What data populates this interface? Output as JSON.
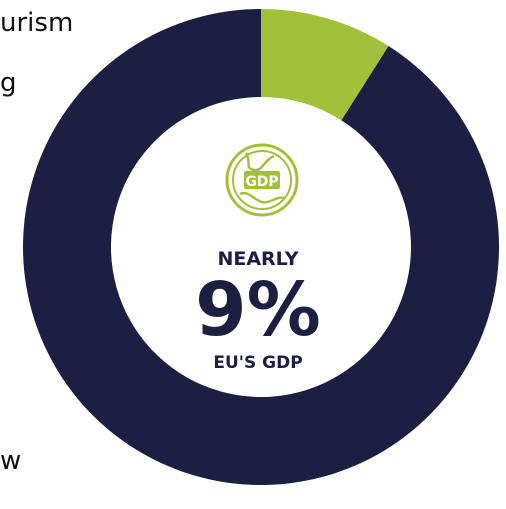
{
  "text_fragments": {
    "top_right_a": "urism",
    "top_right_b": "g",
    "bottom_left": "w"
  },
  "colors": {
    "ring_main": "#1c1f42",
    "ring_highlight": "#a2c13b",
    "center_text": "#1c1f42",
    "background": "#ffffff"
  },
  "chart_data": {
    "type": "pie",
    "variant": "donut",
    "slices": [
      {
        "label": "",
        "value": 9,
        "color": "#a2c13b"
      },
      {
        "label": "",
        "value": 91,
        "color": "#1c1f42"
      }
    ],
    "center_label": {
      "icon": "globe-gdp-icon",
      "icon_text": "GDP",
      "lead": "NEARLY",
      "value": "9%",
      "caption": "EU'S GDP"
    }
  }
}
